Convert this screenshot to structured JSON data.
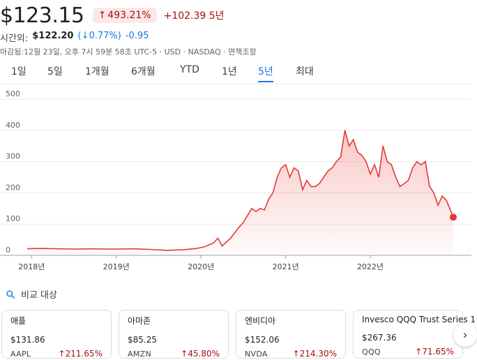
{
  "header": {
    "price": "$123.15",
    "change_pct": "493.21%",
    "change_abs": "+102.39",
    "period": "5년",
    "after_hours_label": "시간외:",
    "after_hours_price": "$122.20",
    "after_hours_pct": "0.77%",
    "after_hours_change": "-0.95",
    "meta": "마감됨:12월 23일, 오후 7시 59분 58초 UTC-5 · USD · NASDAQ · 면책조항"
  },
  "tabs": [
    "1일",
    "5일",
    "1개월",
    "6개월",
    "YTD",
    "1년",
    "5년",
    "최대"
  ],
  "active_tab": "5년",
  "compare": {
    "label": "비교 대상"
  },
  "cards": [
    {
      "name": "애플",
      "price": "$131.86",
      "ticker": "AAPL",
      "pct": "211.65%"
    },
    {
      "name": "아마존",
      "price": "$85.25",
      "ticker": "AMZN",
      "pct": "45.80%"
    },
    {
      "name": "엔비디아",
      "price": "$152.06",
      "ticker": "NVDA",
      "pct": "214.30%"
    },
    {
      "name": "Invesco QQQ Trust Series 1",
      "price": "$267.36",
      "ticker": "QQQ",
      "pct": "71.65%"
    }
  ],
  "colors": {
    "line": "#e53935",
    "accent": "#1a73e8",
    "negative": "#a50e0e"
  },
  "chart_data": {
    "type": "area",
    "y_ticks": [
      "500",
      "400",
      "300",
      "200",
      "100",
      "0"
    ],
    "x_ticks": [
      "2018년",
      "2019년",
      "2020년",
      "2021년",
      "2022년"
    ],
    "ylim": [
      0,
      500
    ],
    "xlim": [
      2017.94,
      2022.98
    ],
    "grid": true,
    "x": [
      2017.95,
      2018.1,
      2018.3,
      2018.5,
      2018.7,
      2018.9,
      2019.0,
      2019.2,
      2019.4,
      2019.6,
      2019.8,
      2019.95,
      2020.05,
      2020.15,
      2020.2,
      2020.25,
      2020.35,
      2020.45,
      2020.5,
      2020.6,
      2020.65,
      2020.7,
      2020.75,
      2020.8,
      2020.85,
      2020.9,
      2020.95,
      2021.0,
      2021.05,
      2021.1,
      2021.15,
      2021.2,
      2021.25,
      2021.3,
      2021.35,
      2021.4,
      2021.45,
      2021.5,
      2021.55,
      2021.6,
      2021.65,
      2021.7,
      2021.75,
      2021.8,
      2021.85,
      2021.9,
      2021.95,
      2022.0,
      2022.05,
      2022.1,
      2022.15,
      2022.2,
      2022.25,
      2022.3,
      2022.35,
      2022.4,
      2022.45,
      2022.5,
      2022.55,
      2022.6,
      2022.65,
      2022.7,
      2022.75,
      2022.8,
      2022.85,
      2022.9,
      2022.98
    ],
    "values": [
      21,
      22,
      21,
      20,
      21,
      20,
      20,
      21,
      19,
      16,
      18,
      22,
      28,
      40,
      55,
      30,
      55,
      90,
      105,
      150,
      140,
      150,
      145,
      180,
      200,
      250,
      280,
      290,
      250,
      280,
      270,
      210,
      240,
      220,
      220,
      230,
      250,
      270,
      280,
      300,
      315,
      400,
      350,
      370,
      330,
      320,
      300,
      260,
      290,
      250,
      350,
      300,
      290,
      250,
      220,
      230,
      240,
      280,
      300,
      290,
      300,
      220,
      200,
      160,
      190,
      175,
      122
    ],
    "last_value": 123.15
  }
}
